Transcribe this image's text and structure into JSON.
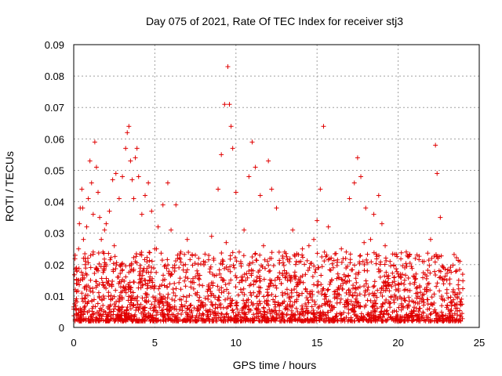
{
  "chart_data": {
    "type": "scatter",
    "title": "Day 075 of 2021, Rate Of TEC Index for receiver stj3",
    "xlabel": "GPS time / hours",
    "ylabel": "ROTI / TECUs",
    "xlim": [
      0,
      25
    ],
    "ylim": [
      0,
      0.09
    ],
    "x_ticks": [
      "0",
      "5",
      "10",
      "15",
      "20",
      "25"
    ],
    "y_ticks": [
      "0",
      "0.01",
      "0.02",
      "0.03",
      "0.04",
      "0.05",
      "0.06",
      "0.07",
      "0.08",
      "0.09"
    ],
    "grid": true,
    "marker": "plus",
    "color": "#e00000",
    "series": [
      {
        "x": [
          0.1,
          0.2,
          0.3,
          0.35,
          0.4,
          0.5,
          0.55,
          0.6,
          0.7,
          0.8,
          0.9,
          1.0,
          1.1,
          1.2,
          1.3,
          1.4,
          1.5,
          1.6,
          1.7,
          1.8,
          1.9,
          2.0,
          2.2,
          2.4,
          2.6,
          2.8,
          3.0,
          3.2,
          3.3,
          3.4,
          3.5,
          3.6,
          3.7,
          3.8,
          3.9,
          4.0,
          4.2,
          4.4,
          4.6,
          4.8,
          5.0,
          5.2,
          5.5,
          5.8,
          6.0,
          6.3,
          6.6,
          7.0,
          7.5,
          8.0,
          8.5,
          8.9,
          9.1,
          9.3,
          9.5,
          9.6,
          9.7,
          9.8,
          10.0,
          10.5,
          10.8,
          11.0,
          11.2,
          11.5,
          12.0,
          12.2,
          12.5,
          13.0,
          13.5,
          14.0,
          14.5,
          14.8,
          15.0,
          15.2,
          15.4,
          15.7,
          16.0,
          16.5,
          17.0,
          17.3,
          17.5,
          17.7,
          18.0,
          18.3,
          18.5,
          18.8,
          19.0,
          19.5,
          20.0,
          20.5,
          21.0,
          21.5,
          22.0,
          22.3,
          22.4,
          22.6,
          23.0,
          23.5,
          23.9,
          0.3,
          0.8,
          1.5,
          2.1,
          2.7,
          3.4,
          4.1,
          4.8,
          5.5,
          6.2,
          6.9,
          7.6,
          8.3,
          9.0,
          9.9,
          10.6,
          11.3,
          12.1,
          12.8,
          13.6,
          14.3,
          15.1,
          15.9,
          16.6,
          17.4,
          18.1,
          18.9,
          19.6,
          20.4,
          21.1,
          21.9,
          22.6,
          23.4,
          23.8,
          0.6,
          1.2,
          2.5,
          3.8,
          5.1,
          6.4,
          7.7,
          9.4,
          10.2,
          11.7,
          12.9,
          14.1,
          15.6,
          16.8,
          17.9,
          19.2,
          20.7,
          21.6,
          22.8,
          23.6,
          0.4,
          1.8,
          3.1,
          4.5,
          5.9,
          7.2,
          8.7,
          10.4,
          12.4,
          13.8,
          15.3,
          17.2,
          18.6,
          20.2,
          21.3,
          23.2
        ],
        "y": [
          0.012,
          0.018,
          0.025,
          0.033,
          0.038,
          0.044,
          0.038,
          0.028,
          0.022,
          0.032,
          0.041,
          0.053,
          0.046,
          0.036,
          0.059,
          0.051,
          0.043,
          0.035,
          0.028,
          0.024,
          0.031,
          0.033,
          0.037,
          0.047,
          0.049,
          0.041,
          0.048,
          0.057,
          0.062,
          0.064,
          0.053,
          0.047,
          0.041,
          0.054,
          0.057,
          0.048,
          0.036,
          0.042,
          0.046,
          0.037,
          0.025,
          0.032,
          0.039,
          0.046,
          0.031,
          0.039,
          0.024,
          0.028,
          0.023,
          0.021,
          0.029,
          0.044,
          0.055,
          0.071,
          0.083,
          0.071,
          0.064,
          0.057,
          0.043,
          0.031,
          0.048,
          0.059,
          0.051,
          0.042,
          0.053,
          0.044,
          0.038,
          0.024,
          0.031,
          0.021,
          0.026,
          0.028,
          0.034,
          0.044,
          0.064,
          0.032,
          0.019,
          0.025,
          0.041,
          0.046,
          0.054,
          0.048,
          0.038,
          0.028,
          0.036,
          0.042,
          0.033,
          0.021,
          0.017,
          0.024,
          0.016,
          0.021,
          0.028,
          0.058,
          0.049,
          0.035,
          0.015,
          0.011,
          0.009,
          0.015,
          0.012,
          0.018,
          0.014,
          0.016,
          0.013,
          0.017,
          0.019,
          0.015,
          0.014,
          0.016,
          0.018,
          0.013,
          0.017,
          0.019,
          0.015,
          0.016,
          0.018,
          0.014,
          0.016,
          0.012,
          0.019,
          0.015,
          0.014,
          0.017,
          0.018,
          0.016,
          0.013,
          0.015,
          0.017,
          0.014,
          0.016,
          0.012,
          0.011,
          0.022,
          0.024,
          0.026,
          0.021,
          0.025,
          0.023,
          0.022,
          0.027,
          0.024,
          0.026,
          0.022,
          0.025,
          0.023,
          0.024,
          0.027,
          0.026,
          0.023,
          0.021,
          0.019,
          0.018,
          0.006,
          0.007,
          0.005,
          0.008,
          0.006,
          0.007,
          0.005,
          0.006,
          0.008,
          0.005,
          0.007,
          0.006,
          0.005,
          0.007,
          0.006,
          0.005
        ]
      }
    ]
  }
}
